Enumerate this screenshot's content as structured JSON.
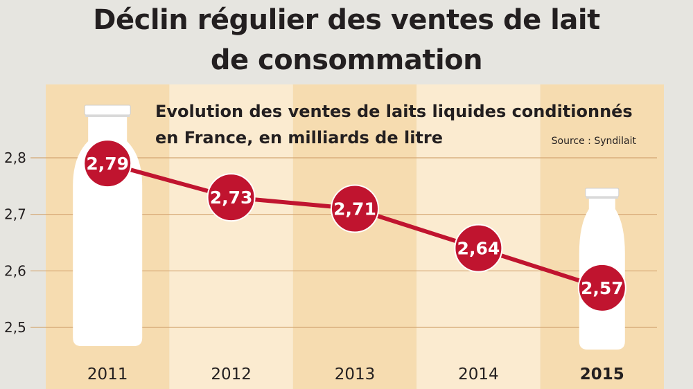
{
  "title_lines": [
    "Déclin régulier des ventes de lait",
    "de consommation"
  ],
  "colors": {
    "background": "#e6e5e0",
    "band_dark": "#f6dcb0",
    "band_light": "#fbebd0",
    "accent": "#c0142f",
    "bottle": "#ffffff",
    "text": "#231f20"
  },
  "chart_data": {
    "type": "line",
    "title_lines": [
      "Evolution des ventes de laits liquides conditionnés",
      "en France, en milliards de litre"
    ],
    "source": "Source : Syndilait",
    "categories": [
      "2011",
      "2012",
      "2013",
      "2014",
      "2015"
    ],
    "values": [
      2.79,
      2.73,
      2.71,
      2.64,
      2.57
    ],
    "value_labels": [
      "2,79",
      "2,73",
      "2,71",
      "2,64",
      "2,57"
    ],
    "y_ticks": [
      2.8,
      2.7,
      2.6,
      2.5
    ],
    "y_tick_labels": [
      "2,8",
      "2,7",
      "2,6",
      "2,5"
    ],
    "ylim": [
      2.5,
      2.8
    ],
    "grid": true,
    "highlight_category": "2015",
    "decorations": "milk bottles behind 2011 (tall) and 2015 (short)"
  }
}
